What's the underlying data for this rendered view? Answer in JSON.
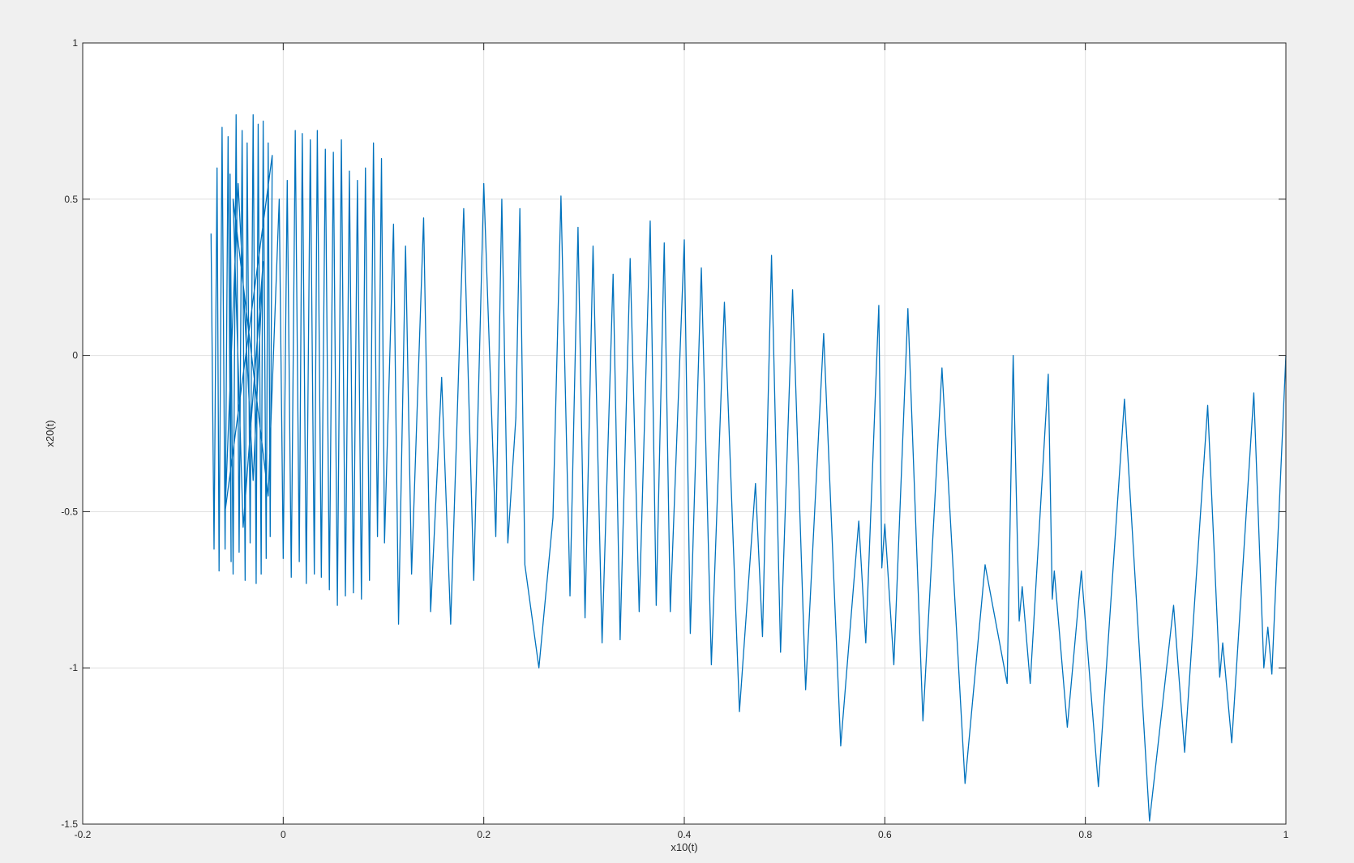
{
  "chart_data": {
    "type": "line",
    "xlabel": "x10(t)",
    "ylabel": "x20(t)",
    "xlim": [
      -0.2,
      1
    ],
    "xticks": [
      -0.2,
      0,
      0.2,
      0.4,
      0.6,
      0.8,
      1
    ],
    "ylim": [
      -1.5,
      1
    ],
    "yticks": [
      -1.5,
      -1,
      -0.5,
      0,
      0.5,
      1
    ],
    "grid": true,
    "x": [
      -0.072,
      -0.069,
      -0.066,
      -0.064,
      -0.061,
      -0.058,
      -0.055,
      -0.052,
      -0.053,
      -0.05,
      -0.047,
      -0.044,
      -0.041,
      -0.038,
      -0.036,
      -0.033,
      -0.03,
      -0.027,
      -0.025,
      -0.022,
      -0.02,
      -0.017,
      -0.015,
      -0.013,
      -0.011,
      -0.058,
      -0.045,
      -0.03,
      -0.02,
      -0.04,
      -0.05,
      -0.015,
      -0.004,
      0.0,
      0.004,
      0.008,
      0.012,
      0.016,
      0.019,
      0.023,
      0.027,
      0.031,
      0.034,
      0.038,
      0.042,
      0.046,
      0.05,
      0.054,
      0.058,
      0.062,
      0.066,
      0.07,
      0.074,
      0.078,
      0.082,
      0.086,
      0.09,
      0.094,
      0.098,
      0.101,
      0.11,
      0.115,
      0.122,
      0.128,
      0.14,
      0.147,
      0.158,
      0.167,
      0.18,
      0.19,
      0.2,
      0.212,
      0.218,
      0.224,
      0.232,
      0.236,
      0.241,
      0.255,
      0.269,
      0.277,
      0.286,
      0.294,
      0.301,
      0.309,
      0.318,
      0.329,
      0.336,
      0.346,
      0.355,
      0.366,
      0.372,
      0.38,
      0.386,
      0.4,
      0.406,
      0.417,
      0.427,
      0.44,
      0.455,
      0.471,
      0.478,
      0.487,
      0.496,
      0.508,
      0.521,
      0.539,
      0.556,
      0.574,
      0.581,
      0.594,
      0.597,
      0.6,
      0.609,
      0.623,
      0.638,
      0.657,
      0.68,
      0.7,
      0.722,
      0.728,
      0.734,
      0.737,
      0.745,
      0.763,
      0.767,
      0.769,
      0.782,
      0.796,
      0.813,
      0.839,
      0.864,
      0.888,
      0.899,
      0.922,
      0.934,
      0.937,
      0.946,
      0.968,
      0.978,
      0.982,
      0.986,
      1.0
    ],
    "series": [
      {
        "name": "x20(t)",
        "color": "#0072bd",
        "values": [
          0.39,
          -0.62,
          0.6,
          -0.69,
          0.73,
          -0.62,
          0.7,
          -0.66,
          0.58,
          -0.7,
          0.77,
          -0.63,
          0.72,
          -0.72,
          0.68,
          -0.6,
          0.77,
          -0.73,
          0.74,
          -0.7,
          0.75,
          -0.65,
          0.68,
          -0.58,
          0.64,
          -0.5,
          0.55,
          -0.4,
          0.3,
          -0.55,
          0.5,
          -0.45,
          0.5,
          -0.65,
          0.56,
          -0.71,
          0.72,
          -0.66,
          0.71,
          -0.73,
          0.69,
          -0.7,
          0.72,
          -0.71,
          0.66,
          -0.75,
          0.65,
          -0.8,
          0.69,
          -0.77,
          0.59,
          -0.76,
          0.56,
          -0.78,
          0.6,
          -0.72,
          0.68,
          -0.58,
          0.63,
          -0.6,
          0.42,
          -0.86,
          0.35,
          -0.7,
          0.44,
          -0.82,
          -0.07,
          -0.86,
          0.47,
          -0.72,
          0.55,
          -0.58,
          0.5,
          -0.6,
          -0.2,
          0.47,
          -0.67,
          -1.0,
          -0.52,
          0.51,
          -0.77,
          0.41,
          -0.84,
          0.35,
          -0.92,
          0.26,
          -0.91,
          0.31,
          -0.82,
          0.43,
          -0.8,
          0.36,
          -0.82,
          0.37,
          -0.89,
          0.28,
          -0.99,
          0.17,
          -1.14,
          -0.41,
          -0.9,
          0.32,
          -0.95,
          0.21,
          -1.07,
          0.07,
          -1.25,
          -0.53,
          -0.92,
          0.16,
          -0.68,
          -0.54,
          -0.99,
          0.15,
          -1.17,
          -0.04,
          -1.37,
          -0.67,
          -1.05,
          0.0,
          -0.85,
          -0.74,
          -1.05,
          -0.06,
          -0.78,
          -0.69,
          -1.19,
          -0.69,
          -1.38,
          -0.14,
          -1.49,
          -0.8,
          -1.27,
          -0.16,
          -1.03,
          -0.92,
          -1.24,
          -0.12,
          -1.0,
          -0.87,
          -1.02,
          0.0
        ]
      }
    ]
  }
}
